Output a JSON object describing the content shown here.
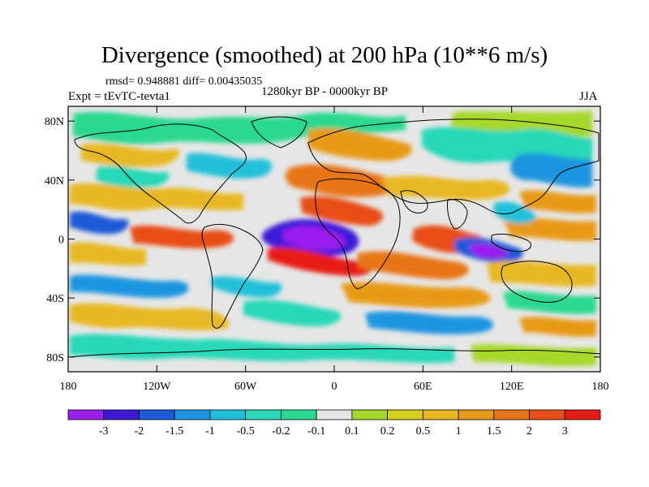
{
  "title": "Divergence (smoothed) at 200 hPa (10**6 m/s)",
  "stats_line": "rmsd= 0.948881 diff= 0.00435035",
  "experiment_label": "Expt = tEvTC-tevta1",
  "period_label": "1280kyr BP - 0000kyr BP",
  "season_label": "JJA",
  "map": {
    "lat_range": [
      -90,
      90
    ],
    "lon_range": [
      -180,
      180
    ],
    "lat_ticks": [
      {
        "value": 80,
        "label": "80N"
      },
      {
        "value": 40,
        "label": "40N"
      },
      {
        "value": 0,
        "label": "0"
      },
      {
        "value": -40,
        "label": "40S"
      },
      {
        "value": -80,
        "label": "80S"
      }
    ],
    "lon_ticks": [
      {
        "value": -180,
        "label": "180"
      },
      {
        "value": -120,
        "label": "120W"
      },
      {
        "value": -60,
        "label": "60W"
      },
      {
        "value": 0,
        "label": "0"
      },
      {
        "value": 60,
        "label": "60E"
      },
      {
        "value": 120,
        "label": "120E"
      },
      {
        "value": 180,
        "label": "180"
      }
    ]
  },
  "colorbar": {
    "colors": [
      "#9a1ff0",
      "#3d1ad8",
      "#1f5ad8",
      "#1e95e0",
      "#20c0d8",
      "#28d8b8",
      "#2ad890",
      "#e6e6e6",
      "#a6d82a",
      "#d8d01e",
      "#e8b820",
      "#e89a18",
      "#e87418",
      "#e84e18",
      "#e81a18"
    ],
    "labels": [
      "-3",
      "-2",
      "-1.5",
      "-1",
      "-0.5",
      "-0.2",
      "-0.1",
      "0.1",
      "0.2",
      "0.5",
      "1",
      "1.5",
      "2",
      "3"
    ]
  }
}
